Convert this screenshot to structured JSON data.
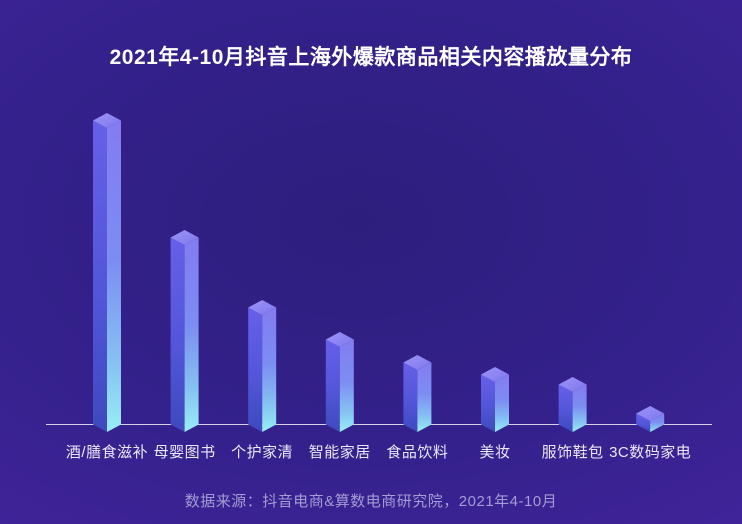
{
  "title": "2021年4-10月抖音上海外爆款商品相关内容播放量分布",
  "footer": "数据来源：抖音电商&算数电商研究院，2021年4-10月",
  "colors": {
    "background_outer": "#44249E",
    "background_inner": "#2D1E7D",
    "title_color": "#FFFFFF",
    "axis_label_color": "#E9E8FB",
    "footer_color": "#A49CD4",
    "baseline_color": "rgba(255,255,255,0.8)",
    "bar_top_face": [
      "#9C95F8",
      "#7E76EE"
    ],
    "bar_left_face": [
      "#6660E8",
      "#5356D8",
      "#3E49BE"
    ],
    "bar_right_face": [
      "#837CF0",
      "#7C8DF2",
      "#86C2F2",
      "#98EEF6"
    ]
  },
  "chart_data": {
    "type": "bar",
    "style": "isometric-3d-columns",
    "title": "2021年4-10月抖音上海外爆款商品相关内容播放量分布",
    "categories": [
      "酒/膳食滋补",
      "母婴图书",
      "个护家清",
      "智能家居",
      "食品饮料",
      "美妆",
      "服饰鞋包",
      "3C数码家电"
    ],
    "values": [
      319,
      202,
      132,
      100,
      77,
      65,
      55,
      26
    ],
    "values_note": "no numeric axis shown in chart; values are relative column heights in pixels",
    "xlabel": "",
    "ylabel": "",
    "legend": false,
    "gridlines": false,
    "source_note": "数据来源：抖音电商&算数电商研究院，2021年4-10月"
  }
}
